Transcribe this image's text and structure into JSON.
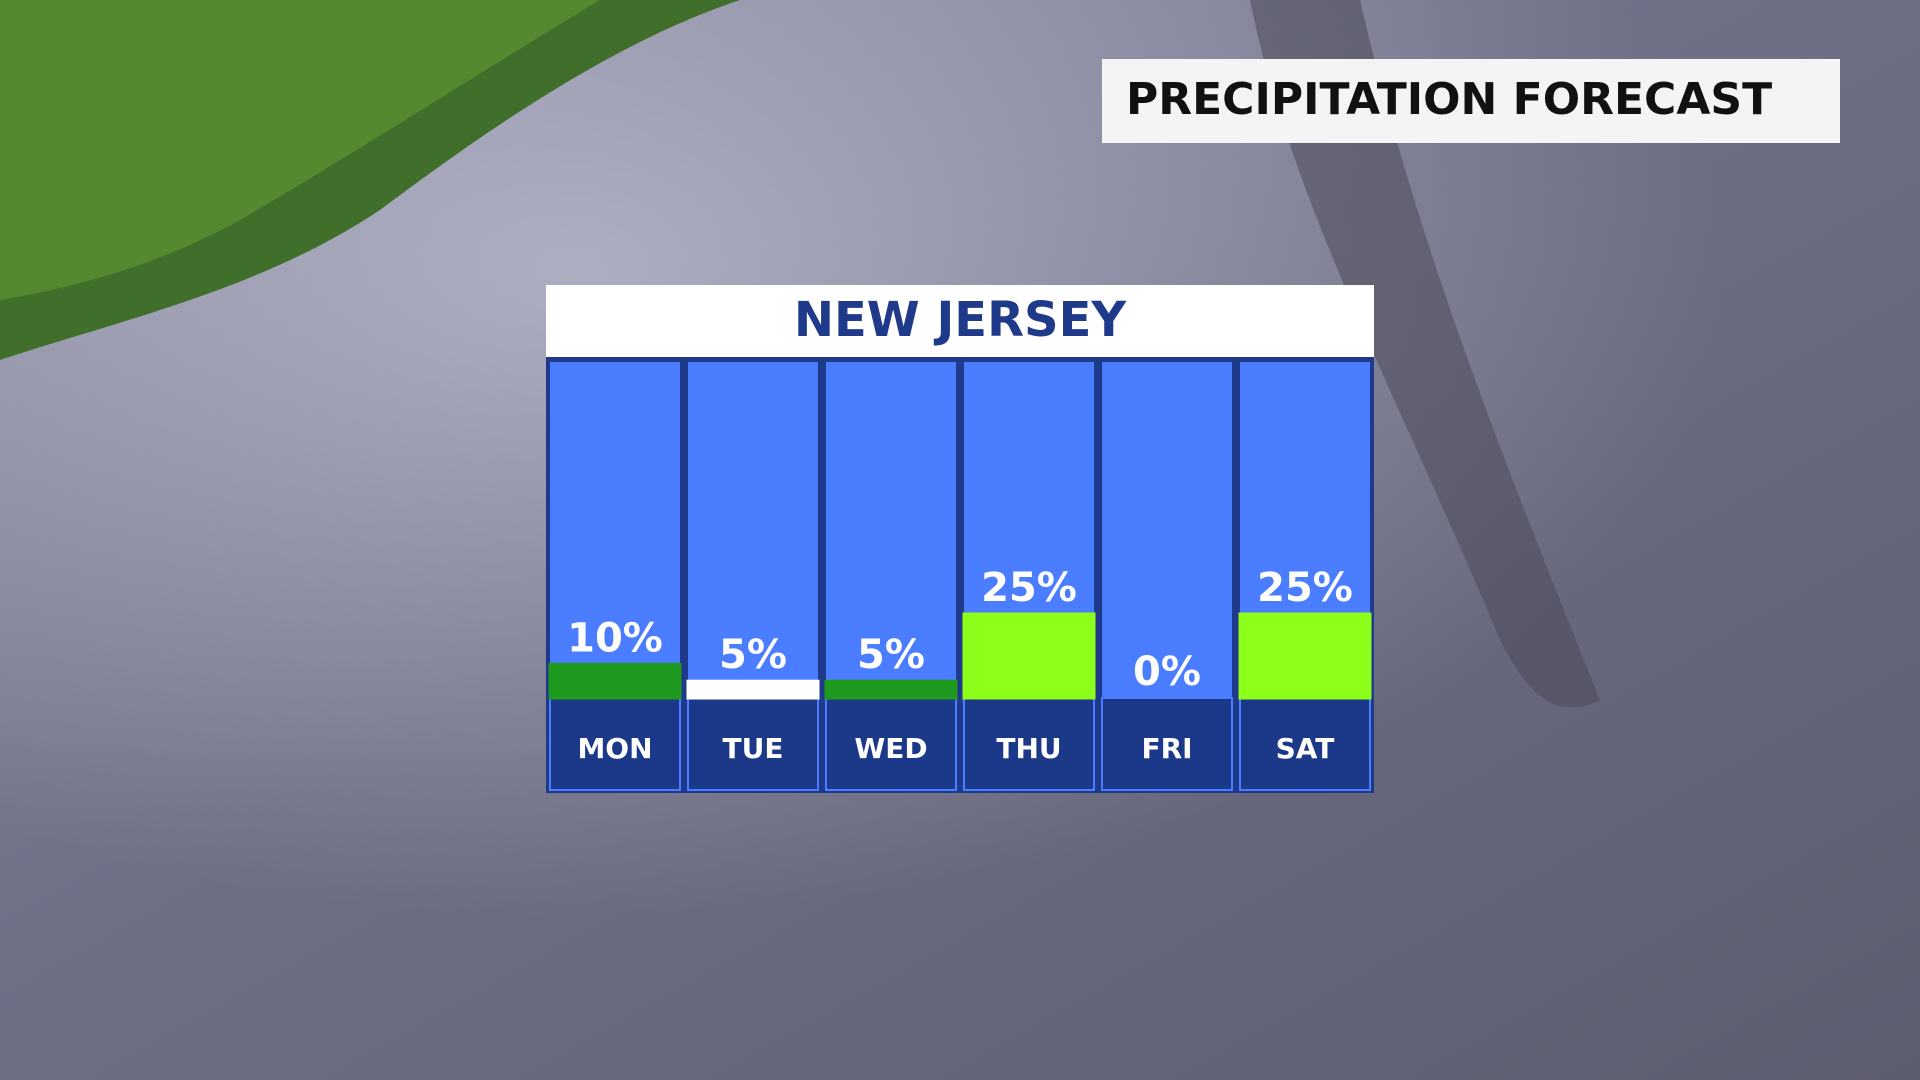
{
  "header": {
    "title": "PRECIPITATION FORECAST"
  },
  "chart_data": {
    "type": "bar",
    "title": "NEW JERSEY",
    "categories": [
      "MON",
      "TUE",
      "WED",
      "THU",
      "FRI",
      "SAT"
    ],
    "values": [
      10,
      5,
      5,
      25,
      0,
      25
    ],
    "value_labels": [
      "10%",
      "5%",
      "5%",
      "25%",
      "0%",
      "25%"
    ],
    "colors": [
      "#1e9a1e",
      "#ffffff",
      "#1e9a1e",
      "#8cff1a",
      "#ffffff",
      "#8cff1a"
    ],
    "ylim": [
      0,
      100
    ]
  }
}
